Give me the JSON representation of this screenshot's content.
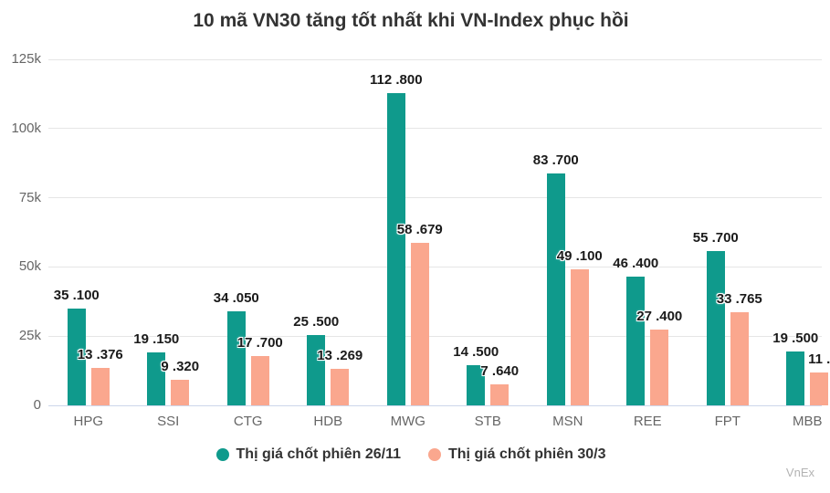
{
  "title": "10 mã VN30 tăng tốt nhất khi VN-Index phục hồi",
  "watermark": "VnEx",
  "colors": {
    "series1": "#0f9a8c",
    "series2": "#faa78e",
    "gridline": "#e6e6e6",
    "axis_line": "#ccd6eb",
    "value_label_text": "#1a1a1a",
    "axis_text": "#666666",
    "title_text": "#333333"
  },
  "legend": [
    {
      "label": "Thị giá chốt phiên 26/11",
      "color": "#0f9a8c"
    },
    {
      "label": "Thị giá chốt phiên 30/3",
      "color": "#faa78e"
    }
  ],
  "chart_data": {
    "type": "bar",
    "title": "10 mã VN30 tăng tốt nhất khi VN-Index phục hồi",
    "categories": [
      "HPG",
      "SSI",
      "CTG",
      "HDB",
      "MWG",
      "STB",
      "MSN",
      "REE",
      "FPT",
      "MBB"
    ],
    "series": [
      {
        "name": "Thị giá chốt phiên 26/11",
        "color": "#0f9a8c",
        "values": [
          35100,
          19150,
          34050,
          25500,
          112800,
          14500,
          83700,
          46400,
          55700,
          19500
        ],
        "labels": [
          "35 .100",
          "19 .150",
          "34 .050",
          "25 .500",
          "112 .800",
          "14 .500",
          "83 .700",
          "46 .400",
          "55 .700",
          "19 .500"
        ]
      },
      {
        "name": "Thị giá chốt phiên 30/3",
        "color": "#faa78e",
        "values": [
          13376,
          9320,
          17700,
          13269,
          58679,
          7640,
          49100,
          27400,
          33765,
          11850
        ],
        "labels": [
          "13 .376",
          "9 .320",
          "17 .700",
          "13 .269",
          "58 .679",
          "7 .640",
          "49 .100",
          "27 .400",
          "33 .765",
          "11 ."
        ],
        "last_label_truncated_by_image_edge": true
      }
    ],
    "xlabel": "",
    "ylabel": "",
    "ylim": [
      0,
      125000
    ],
    "yticks": [
      {
        "value": 0,
        "label": "0"
      },
      {
        "value": 25000,
        "label": "25k"
      },
      {
        "value": 50000,
        "label": "50k"
      },
      {
        "value": 75000,
        "label": "75k"
      },
      {
        "value": 100000,
        "label": "100k"
      },
      {
        "value": 125000,
        "label": "125k"
      }
    ],
    "grid": true,
    "legend_position": "bottom-center",
    "bar_value_labels": true
  }
}
